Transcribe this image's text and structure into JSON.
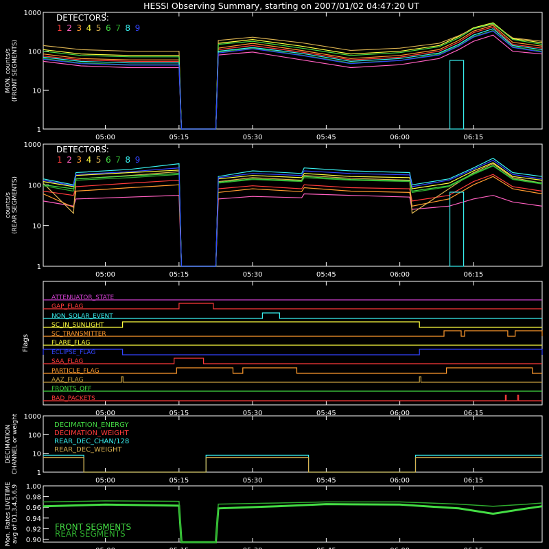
{
  "title": "HESSI Observing Summary, starting on 2007/01/02 04:47:20 UT",
  "time_ticks": [
    "05:00",
    "05:15",
    "05:30",
    "05:45",
    "06:00",
    "06:15"
  ],
  "time_tick_minutes": [
    300,
    315,
    330,
    345,
    360,
    375
  ],
  "time_range": [
    287.33,
    389
  ],
  "colors": {
    "background": "#000000",
    "axes": "#ffffff",
    "det1": "#ff3b3b",
    "det2": "#ff5fc0",
    "det3": "#ff9a2e",
    "det4": "#ffff40",
    "det5": "#d8b050",
    "det6": "#44dd44",
    "det7": "#2eaa2e",
    "det8": "#38f0f0",
    "det9": "#3344ff"
  },
  "chart_data": [
    {
      "type": "line",
      "name": "front",
      "ylabel": [
        "MON. counts/s",
        "(FRONT SEGMENTS)"
      ],
      "yscale": "log",
      "ylim": [
        1,
        1000
      ],
      "yticks": [
        "1",
        "10",
        "100",
        "1000"
      ],
      "legend_title": "DETECTORS:",
      "legend": [
        "1",
        "2",
        "3",
        "4",
        "5",
        "6",
        "7",
        "8",
        "9"
      ],
      "x": [
        287.33,
        295,
        305,
        315,
        315.5,
        322.5,
        323,
        330,
        340,
        350,
        360,
        368,
        372,
        375,
        379,
        383,
        389
      ],
      "series": [
        {
          "name": "1",
          "values": [
            75,
            60,
            55,
            55,
            1,
            1,
            110,
            140,
            95,
            60,
            70,
            100,
            170,
            300,
            420,
            150,
            120
          ]
        },
        {
          "name": "2",
          "values": [
            55,
            42,
            38,
            38,
            1,
            1,
            80,
            95,
            60,
            38,
            45,
            65,
            110,
            180,
            260,
            100,
            85
          ]
        },
        {
          "name": "3",
          "values": [
            85,
            65,
            60,
            60,
            1,
            1,
            120,
            160,
            105,
            65,
            78,
            110,
            190,
            330,
            460,
            170,
            135
          ]
        },
        {
          "name": "4",
          "values": [
            110,
            85,
            78,
            78,
            1,
            1,
            160,
            200,
            135,
            85,
            100,
            140,
            240,
            400,
            540,
            210,
            165
          ]
        },
        {
          "name": "5",
          "values": [
            140,
            110,
            100,
            100,
            1,
            1,
            190,
            230,
            165,
            105,
            120,
            160,
            250,
            380,
            500,
            220,
            180
          ]
        },
        {
          "name": "6",
          "values": [
            100,
            78,
            72,
            72,
            1,
            1,
            150,
            180,
            120,
            78,
            92,
            130,
            220,
            380,
            520,
            200,
            150
          ]
        },
        {
          "name": "7",
          "values": [
            65,
            50,
            45,
            45,
            1,
            1,
            95,
            120,
            80,
            50,
            58,
            85,
            140,
            240,
            340,
            130,
            100
          ]
        },
        {
          "name": "8",
          "values": [
            70,
            55,
            50,
            50,
            1,
            1,
            100,
            125,
            88,
            55,
            65,
            90,
            150,
            260,
            380,
            140,
            110
          ]
        },
        {
          "name": "9",
          "values": [
            62,
            48,
            44,
            44,
            1,
            1,
            90,
            115,
            78,
            48,
            58,
            80,
            135,
            230,
            330,
            125,
            95
          ]
        }
      ],
      "cyan_dropouts": [
        [
          370.2,
          373
        ]
      ]
    },
    {
      "type": "line",
      "name": "rear",
      "ylabel": [
        "counts/s",
        "(REAR SEGMENTS)"
      ],
      "yscale": "log",
      "ylim": [
        1,
        1000
      ],
      "yticks": [
        "1",
        "10",
        "100",
        "1000"
      ],
      "legend_title": "DETECTORS:",
      "legend": [
        "1",
        "2",
        "3",
        "4",
        "5",
        "6",
        "7",
        "8",
        "9"
      ],
      "x": [
        287.33,
        293.5,
        294,
        305,
        315,
        315.5,
        322.5,
        323,
        330,
        340,
        340.5,
        350,
        362,
        362.5,
        370,
        375,
        379,
        383,
        389
      ],
      "series": [
        {
          "name": "1",
          "values": [
            70,
            55,
            90,
            110,
            130,
            1,
            1,
            80,
            95,
            80,
            100,
            85,
            80,
            40,
            55,
            120,
            180,
            90,
            70
          ]
        },
        {
          "name": "2",
          "values": [
            40,
            30,
            45,
            50,
            55,
            1,
            1,
            45,
            52,
            48,
            60,
            55,
            50,
            25,
            30,
            45,
            55,
            38,
            30
          ]
        },
        {
          "name": "3",
          "values": [
            60,
            28,
            70,
            85,
            100,
            1,
            1,
            65,
            80,
            68,
            85,
            70,
            65,
            30,
            45,
            100,
            160,
            80,
            60
          ]
        },
        {
          "name": "4",
          "values": [
            120,
            90,
            170,
            200,
            230,
            1,
            1,
            140,
            170,
            150,
            190,
            160,
            150,
            80,
            110,
            220,
            350,
            160,
            130
          ]
        },
        {
          "name": "5",
          "values": [
            110,
            20,
            140,
            170,
            210,
            1,
            1,
            120,
            150,
            130,
            170,
            145,
            130,
            20,
            80,
            200,
            330,
            150,
            110
          ]
        },
        {
          "name": "6",
          "values": [
            100,
            80,
            140,
            165,
            190,
            1,
            1,
            115,
            140,
            125,
            160,
            135,
            125,
            70,
            95,
            190,
            300,
            140,
            110
          ]
        },
        {
          "name": "7",
          "values": [
            95,
            70,
            130,
            150,
            180,
            1,
            1,
            110,
            135,
            120,
            150,
            130,
            120,
            65,
            90,
            180,
            290,
            135,
            105
          ]
        },
        {
          "name": "8",
          "values": [
            140,
            100,
            200,
            240,
            330,
            1,
            1,
            160,
            220,
            190,
            260,
            220,
            200,
            100,
            140,
            260,
            450,
            200,
            160
          ]
        },
        {
          "name": "9",
          "values": [
            130,
            95,
            180,
            210,
            260,
            1,
            1,
            150,
            190,
            170,
            220,
            190,
            175,
            90,
            130,
            240,
            400,
            180,
            140
          ]
        }
      ],
      "cyan_dropouts": [
        [
          370.2,
          373
        ]
      ]
    },
    {
      "type": "step",
      "name": "flags",
      "ylabel": "Flags",
      "flags": [
        {
          "label": "ATTENUATOR_STATE",
          "color": "#d040d0",
          "highs": []
        },
        {
          "label": "GAP_FLAG",
          "color": "#ff3b3b",
          "highs": [
            [
              315,
              322
            ]
          ]
        },
        {
          "label": "NON_SOLAR_EVENT",
          "color": "#38f0f0",
          "highs": [
            [
              332,
              335.5
            ]
          ]
        },
        {
          "label": "SC_IN_SUNLIGHT",
          "color": "#ffff40",
          "highs": [
            [
              303.5,
              364
            ]
          ]
        },
        {
          "label": "SC_TRANSMITTER",
          "color": "#ff9a2e",
          "highs": [
            [
              369,
              372.5
            ],
            [
              373.2,
              382
            ],
            [
              383.5,
              389
            ]
          ]
        },
        {
          "label": "FLARE_FLAG",
          "color": "#ffff40",
          "highs": []
        },
        {
          "label": "ECLIPSE_FLAG",
          "color": "#3344ff",
          "highs": [
            [
              287.33,
              303.5
            ],
            [
              364,
              389
            ]
          ]
        },
        {
          "label": "SAA_FLAG",
          "color": "#ff3b3b",
          "highs": [
            [
              314,
              320
            ]
          ]
        },
        {
          "label": "PARTICLE_FLAG",
          "color": "#ff9a2e",
          "highs": [
            [
              314.5,
              326
            ],
            [
              328,
              339
            ],
            [
              369.5,
              387
            ]
          ]
        },
        {
          "label": "AAZ_FLAG",
          "color": "#c8a040",
          "highs": [
            [
              303.3,
              303.6
            ],
            [
              364,
              364.3
            ]
          ]
        },
        {
          "label": "FRONTS_OFF",
          "color": "#44dd44",
          "highs": []
        },
        {
          "label": "BAD_PACKETS",
          "color": "#ff3b3b",
          "highs": [
            [
              381.5,
              381.7
            ],
            [
              384,
              384.2
            ]
          ]
        }
      ]
    },
    {
      "type": "step",
      "name": "decimation",
      "ylabel": [
        "DECIMATION",
        "CHANNEL or weight"
      ],
      "yscale": "log",
      "ylim": [
        1,
        1000
      ],
      "yticks": [
        "1",
        "10",
        "100",
        "1000"
      ],
      "legend": [
        {
          "label": "DECIMATION_ENERGY",
          "color": "#44dd44"
        },
        {
          "label": "DECIMATION_WEIGHT",
          "color": "#ff3b3b"
        },
        {
          "label": "REAR_DEC_CHAN/128",
          "color": "#38f0f0"
        },
        {
          "label": "REAR_DEC_WEIGHT",
          "color": "#d8b050"
        }
      ],
      "x": [
        287.33,
        295.6,
        295.6,
        320.5,
        320.5,
        341.4,
        341.4,
        363.2,
        363.2,
        389
      ],
      "series": [
        {
          "name": "REAR_DEC_CHAN/128",
          "values": [
            8,
            8,
            1,
            1,
            8,
            8,
            1,
            1,
            8,
            8
          ]
        },
        {
          "name": "REAR_DEC_WEIGHT",
          "values": [
            6,
            6,
            1,
            1,
            6,
            6,
            1,
            1,
            6,
            6
          ]
        }
      ]
    },
    {
      "type": "line",
      "name": "livetime",
      "ylabel": [
        "Mon. Rates LIVETIME",
        "avg of D1,3,4,5,6,9"
      ],
      "ylim": [
        0.895,
        1.0
      ],
      "yticks": [
        "0.90",
        "0.92",
        "0.94",
        "0.96",
        "0.98",
        "1.00"
      ],
      "ytick_values": [
        0.9,
        0.92,
        0.94,
        0.96,
        0.98,
        1.0
      ],
      "legend": [
        {
          "label": "FRONT SEGMENTS",
          "color": "#44dd44"
        },
        {
          "label": "REAR SEGMENTS",
          "color": "#2eaa2e"
        }
      ],
      "x": [
        287.33,
        300,
        315,
        315.5,
        322.5,
        323,
        335,
        345,
        360,
        372,
        379,
        386,
        389
      ],
      "series": [
        {
          "name": "FRONT SEGMENTS",
          "values": [
            0.962,
            0.965,
            0.963,
            0.895,
            0.895,
            0.958,
            0.962,
            0.966,
            0.965,
            0.958,
            0.948,
            0.958,
            0.962
          ]
        },
        {
          "name": "REAR SEGMENTS",
          "values": [
            0.97,
            0.972,
            0.971,
            0.895,
            0.895,
            0.966,
            0.968,
            0.97,
            0.97,
            0.966,
            0.962,
            0.966,
            0.968
          ]
        }
      ]
    }
  ]
}
